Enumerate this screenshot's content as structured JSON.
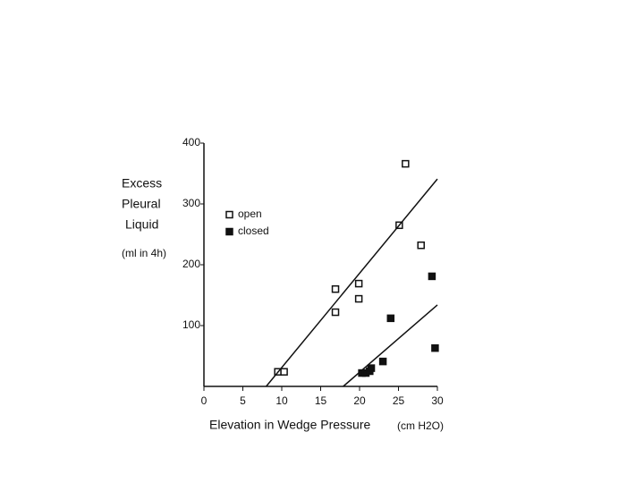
{
  "chart_data": {
    "type": "scatter",
    "ylabel": [
      "Excess",
      "Pleural",
      "Liquid"
    ],
    "ylabel_unit": "(ml in 4h)",
    "xlabel": "Elevation in Wedge Pressure",
    "xlabel_unit": "(cm H2O)",
    "xlim": [
      0,
      30
    ],
    "xticks": [
      0,
      5,
      10,
      15,
      20,
      25,
      30
    ],
    "ylim": [
      0,
      400
    ],
    "yticks": [
      100,
      200,
      300,
      400
    ],
    "legend": "upper left",
    "series": [
      {
        "name": "open",
        "color": "#111",
        "filled": false,
        "x": [
          9.5,
          10.3,
          16.9,
          16.9,
          19.9,
          19.9,
          25.1,
          25.9,
          27.9
        ],
        "values": [
          24,
          24,
          160,
          122,
          169,
          144,
          265,
          366,
          232
        ]
      },
      {
        "name": "closed",
        "color": "#111",
        "filled": true,
        "x": [
          20.3,
          20.8,
          21.3,
          21.5,
          23.0,
          24.0,
          29.3,
          29.7
        ],
        "values": [
          22,
          22,
          25,
          30,
          41,
          112,
          181,
          63
        ]
      }
    ],
    "lines": [
      {
        "x": [
          8.0,
          30
        ],
        "values": [
          0,
          341
        ]
      },
      {
        "x": [
          17.9,
          30
        ],
        "values": [
          0,
          134
        ]
      }
    ]
  }
}
